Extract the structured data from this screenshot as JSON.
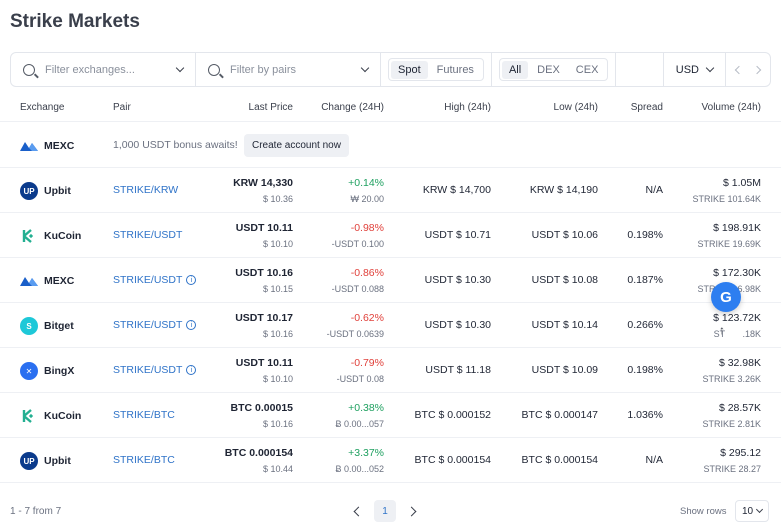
{
  "title": "Strike Markets",
  "filters": {
    "exchanges_placeholder": "Filter exchanges...",
    "pairs_placeholder": "Filter by pairs",
    "market_types": [
      "Spot",
      "Futures"
    ],
    "market_active": "Spot",
    "venue_types": [
      "All",
      "DEX",
      "CEX"
    ],
    "venue_active": "All",
    "currency": "USD"
  },
  "columns": {
    "exchange": "Exchange",
    "pair": "Pair",
    "last_price": "Last Price",
    "change": "Change (24H)",
    "high": "High (24h)",
    "low": "Low (24h)",
    "spread": "Spread",
    "volume": "Volume (24h)"
  },
  "promo": {
    "exchange": "MEXC",
    "text": "1,000 USDT bonus awaits!",
    "button": "Create account now"
  },
  "rows": [
    {
      "exchange": "Upbit",
      "logo": "upbit",
      "pair": "STRIKE/KRW",
      "info": false,
      "price": "KRW 14,330",
      "price_usd": "$ 10.36",
      "change": "+0.14%",
      "change_abs": "₩ 20.00",
      "dir": "pos",
      "high": "KRW $ 14,700",
      "low": "KRW $ 14,190",
      "spread": "N/A",
      "vol": "$ 1.05M",
      "vol_token": "STRIKE 101.64K"
    },
    {
      "exchange": "KuCoin",
      "logo": "kucoin",
      "pair": "STRIKE/USDT",
      "info": false,
      "price": "USDT 10.11",
      "price_usd": "$ 10.10",
      "change": "-0.98%",
      "change_abs": "-USDT 0.100",
      "dir": "neg",
      "high": "USDT $ 10.71",
      "low": "USDT $ 10.06",
      "spread": "0.198%",
      "vol": "$ 198.91K",
      "vol_token": "STRIKE 19.69K"
    },
    {
      "exchange": "MEXC",
      "logo": "mexc",
      "pair": "STRIKE/USDT",
      "info": true,
      "price": "USDT 10.16",
      "price_usd": "$ 10.15",
      "change": "-0.86%",
      "change_abs": "-USDT 0.088",
      "dir": "neg",
      "high": "USDT $ 10.30",
      "low": "USDT $ 10.08",
      "spread": "0.187%",
      "vol": "$ 172.30K",
      "vol_token": "STRIKE 16.98K"
    },
    {
      "exchange": "Bitget",
      "logo": "bitget",
      "pair": "STRIKE/USDT",
      "info": true,
      "price": "USDT 10.17",
      "price_usd": "$ 10.16",
      "change": "-0.62%",
      "change_abs": "-USDT 0.0639",
      "dir": "neg",
      "high": "USDT $ 10.30",
      "low": "USDT $ 10.14",
      "spread": "0.266%",
      "vol": "$ 123.72K",
      "vol_token": "ST       .18K"
    },
    {
      "exchange": "BingX",
      "logo": "bingx",
      "pair": "STRIKE/USDT",
      "info": true,
      "price": "USDT 10.11",
      "price_usd": "$ 10.10",
      "change": "-0.79%",
      "change_abs": "-USDT 0.08",
      "dir": "neg",
      "high": "USDT $ 11.18",
      "low": "USDT $ 10.09",
      "spread": "0.198%",
      "vol": "$ 32.98K",
      "vol_token": "STRIKE 3.26K"
    },
    {
      "exchange": "KuCoin",
      "logo": "kucoin",
      "pair": "STRIKE/BTC",
      "info": false,
      "price": "BTC 0.00015",
      "price_usd": "$ 10.16",
      "change": "+0.38%",
      "change_abs": "Ƀ 0.00...057",
      "dir": "pos",
      "high": "BTC $ 0.000152",
      "low": "BTC $ 0.000147",
      "spread": "1.036%",
      "vol": "$ 28.57K",
      "vol_token": "STRIKE 2.81K"
    },
    {
      "exchange": "Upbit",
      "logo": "upbit",
      "pair": "STRIKE/BTC",
      "info": false,
      "price": "BTC 0.000154",
      "price_usd": "$ 10.44",
      "change": "+3.37%",
      "change_abs": "Ƀ 0.00...052",
      "dir": "pos",
      "high": "BTC $ 0.000154",
      "low": "BTC $ 0.000154",
      "spread": "N/A",
      "vol": "$ 295.12",
      "vol_token": "STRIKE 28.27"
    }
  ],
  "footer": {
    "count": "1 - 7 from 7",
    "page": "1",
    "show_rows_label": "Show rows",
    "rows_value": "10"
  },
  "colors": {
    "accent": "#2f73c8",
    "positive": "#1fa060",
    "negative": "#e0413b",
    "float_button": "#2d7ef0"
  }
}
